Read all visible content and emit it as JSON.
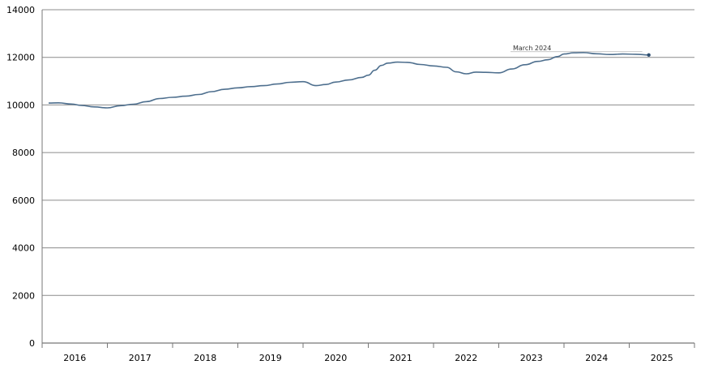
{
  "chart_data": {
    "type": "line",
    "title": "",
    "xlabel": "",
    "ylabel": "",
    "ylim": [
      0,
      14000
    ],
    "yticks": [
      0,
      2000,
      4000,
      6000,
      8000,
      10000,
      12000,
      14000
    ],
    "categories": [
      "2016",
      "2017",
      "2018",
      "2019",
      "2020",
      "2021",
      "2022",
      "2023",
      "2024",
      "2025"
    ],
    "grid": "horizontal",
    "series": [
      {
        "color": "#4e6f8e",
        "x": [
          2016.1,
          2016.25,
          2016.45,
          2016.6,
          2016.8,
          2017.0,
          2017.2,
          2017.4,
          2017.6,
          2017.8,
          2018.0,
          2018.2,
          2018.4,
          2018.6,
          2018.8,
          2019.0,
          2019.2,
          2019.4,
          2019.6,
          2019.8,
          2020.0,
          2020.2,
          2020.35,
          2020.5,
          2020.7,
          2020.9,
          2021.0,
          2021.1,
          2021.2,
          2021.3,
          2021.45,
          2021.6,
          2021.8,
          2022.0,
          2022.2,
          2022.35,
          2022.5,
          2022.65,
          2022.8,
          2023.0,
          2023.2,
          2023.4,
          2023.6,
          2023.75,
          2023.9,
          2024.0,
          2024.15,
          2024.3,
          2024.5,
          2024.7,
          2024.9,
          2025.1,
          2025.3
        ],
        "y": [
          10080,
          10090,
          10040,
          9980,
          9920,
          9880,
          9970,
          10030,
          10140,
          10270,
          10320,
          10370,
          10440,
          10560,
          10660,
          10720,
          10770,
          10810,
          10880,
          10950,
          10980,
          10810,
          10860,
          10960,
          11050,
          11160,
          11250,
          11460,
          11660,
          11760,
          11800,
          11790,
          11700,
          11640,
          11580,
          11390,
          11310,
          11380,
          11370,
          11350,
          11510,
          11690,
          11830,
          11900,
          12030,
          12140,
          12190,
          12200,
          12150,
          12120,
          12140,
          12130,
          12100
        ]
      }
    ],
    "annotations": [
      {
        "text": "March 2024",
        "x": 2025.25,
        "y": 12100
      }
    ]
  }
}
